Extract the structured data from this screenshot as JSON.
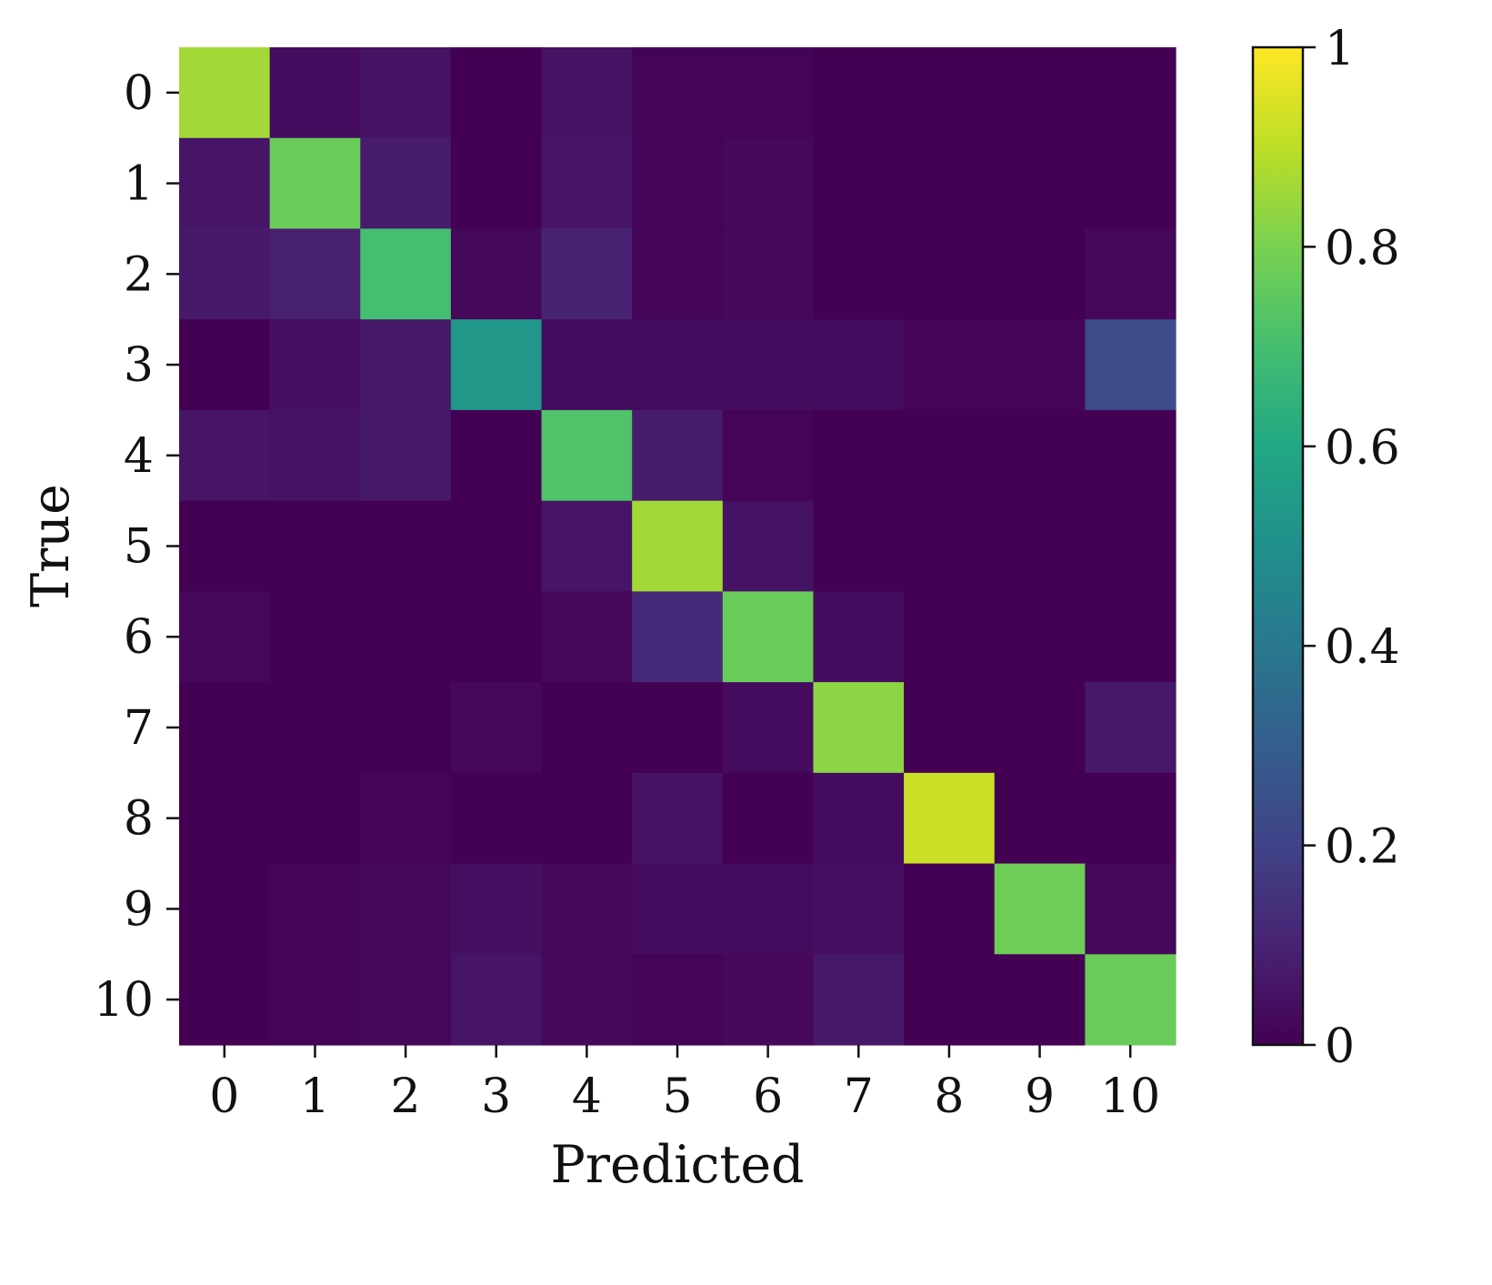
{
  "chart_data": {
    "type": "heatmap",
    "title": "",
    "xlabel": "Predicted",
    "ylabel": "True",
    "x_categories": [
      "0",
      "1",
      "2",
      "3",
      "4",
      "5",
      "6",
      "7",
      "8",
      "9",
      "10"
    ],
    "y_categories": [
      "0",
      "1",
      "2",
      "3",
      "4",
      "5",
      "6",
      "7",
      "8",
      "9",
      "10"
    ],
    "values": [
      [
        0.86,
        0.03,
        0.05,
        0.0,
        0.05,
        0.01,
        0.01,
        0.0,
        0.0,
        0.0,
        0.0
      ],
      [
        0.06,
        0.77,
        0.08,
        0.0,
        0.06,
        0.01,
        0.02,
        0.0,
        0.0,
        0.0,
        0.0
      ],
      [
        0.07,
        0.09,
        0.7,
        0.02,
        0.1,
        0.01,
        0.02,
        0.0,
        0.0,
        0.0,
        0.02
      ],
      [
        0.0,
        0.04,
        0.07,
        0.53,
        0.03,
        0.03,
        0.03,
        0.03,
        0.01,
        0.01,
        0.23
      ],
      [
        0.06,
        0.05,
        0.07,
        0.0,
        0.72,
        0.08,
        0.01,
        0.0,
        0.0,
        0.0,
        0.0
      ],
      [
        0.0,
        0.0,
        0.0,
        0.0,
        0.06,
        0.86,
        0.05,
        0.0,
        0.0,
        0.0,
        0.0
      ],
      [
        0.02,
        0.0,
        0.0,
        0.0,
        0.02,
        0.12,
        0.77,
        0.03,
        0.0,
        0.0,
        0.0
      ],
      [
        0.0,
        0.0,
        0.0,
        0.02,
        0.0,
        0.0,
        0.03,
        0.83,
        0.0,
        0.0,
        0.07
      ],
      [
        0.0,
        0.0,
        0.01,
        0.0,
        0.0,
        0.05,
        0.0,
        0.03,
        0.92,
        0.0,
        0.0
      ],
      [
        0.0,
        0.01,
        0.02,
        0.04,
        0.02,
        0.03,
        0.03,
        0.04,
        0.0,
        0.78,
        0.02
      ],
      [
        0.0,
        0.01,
        0.02,
        0.06,
        0.02,
        0.01,
        0.02,
        0.07,
        0.0,
        0.0,
        0.77
      ]
    ],
    "colormap": "viridis",
    "colorbar": {
      "range": [
        0,
        1
      ],
      "ticks": [
        0,
        0.2,
        0.4,
        0.6,
        0.8,
        1
      ],
      "tick_labels": [
        "0",
        "0.2",
        "0.4",
        "0.6",
        "0.8",
        "1"
      ]
    },
    "grid": false
  }
}
